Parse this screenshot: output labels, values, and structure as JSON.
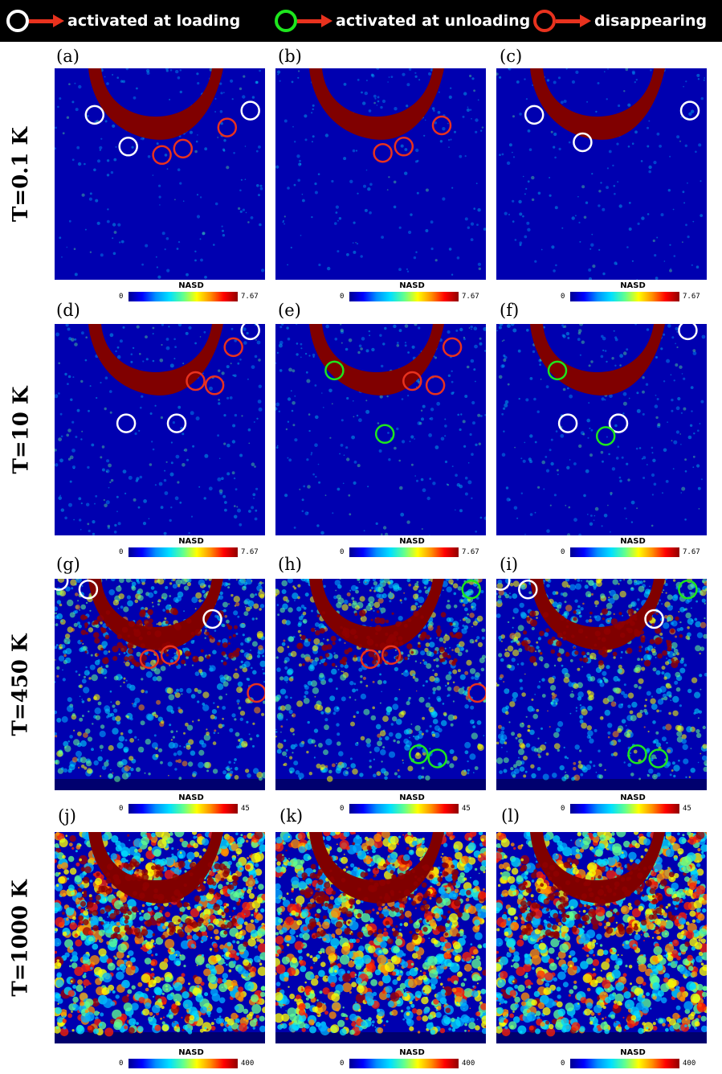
{
  "legend": [
    {
      "text": "activated at loading",
      "color": "#ffffff"
    },
    {
      "text": "activated at unloading",
      "color": "#1ee61e"
    },
    {
      "text": "disappearing",
      "color": "#e8321e"
    }
  ],
  "rows": [
    {
      "label": "T=0.1 K",
      "colorbar": {
        "title": "NASD",
        "min": "0",
        "max": "7.67"
      },
      "intensity": 0.05
    },
    {
      "label": "T=10 K",
      "colorbar": {
        "title": "NASD",
        "min": "0",
        "max": "7.67"
      },
      "intensity": 0.1
    },
    {
      "label": "T=450 K",
      "colorbar": {
        "title": "NASD",
        "min": "0",
        "max": "45"
      },
      "intensity": 0.45
    },
    {
      "label": "T=1000 K",
      "colorbar": {
        "title": "NASD",
        "min": "0",
        "max": "400"
      },
      "intensity": 0.85
    }
  ],
  "panels": [
    {
      "id": "(a)",
      "row": 0,
      "markers": [
        {
          "x": 0.19,
          "y": 0.22,
          "c": "white"
        },
        {
          "x": 0.35,
          "y": 0.37,
          "c": "white"
        },
        {
          "x": 0.93,
          "y": 0.2,
          "c": "white"
        },
        {
          "x": 0.82,
          "y": 0.28,
          "c": "red"
        },
        {
          "x": 0.51,
          "y": 0.41,
          "c": "red"
        },
        {
          "x": 0.61,
          "y": 0.38,
          "c": "red"
        }
      ]
    },
    {
      "id": "(b)",
      "row": 0,
      "markers": [
        {
          "x": 0.79,
          "y": 0.27,
          "c": "red"
        },
        {
          "x": 0.51,
          "y": 0.4,
          "c": "red"
        },
        {
          "x": 0.61,
          "y": 0.37,
          "c": "red"
        }
      ]
    },
    {
      "id": "(c)",
      "row": 0,
      "markers": [
        {
          "x": 0.18,
          "y": 0.22,
          "c": "white"
        },
        {
          "x": 0.41,
          "y": 0.35,
          "c": "white"
        },
        {
          "x": 0.92,
          "y": 0.2,
          "c": "white"
        }
      ]
    },
    {
      "id": "(d)",
      "row": 1,
      "markers": [
        {
          "x": 0.93,
          "y": 0.03,
          "c": "white"
        },
        {
          "x": 0.85,
          "y": 0.11,
          "c": "red"
        },
        {
          "x": 0.67,
          "y": 0.27,
          "c": "red"
        },
        {
          "x": 0.76,
          "y": 0.29,
          "c": "red"
        },
        {
          "x": 0.34,
          "y": 0.47,
          "c": "white"
        },
        {
          "x": 0.58,
          "y": 0.47,
          "c": "white"
        }
      ]
    },
    {
      "id": "(e)",
      "row": 1,
      "markers": [
        {
          "x": 0.84,
          "y": 0.11,
          "c": "red"
        },
        {
          "x": 0.65,
          "y": 0.27,
          "c": "red"
        },
        {
          "x": 0.76,
          "y": 0.29,
          "c": "red"
        },
        {
          "x": 0.28,
          "y": 0.22,
          "c": "green"
        },
        {
          "x": 0.52,
          "y": 0.52,
          "c": "green"
        }
      ]
    },
    {
      "id": "(f)",
      "row": 1,
      "markers": [
        {
          "x": 0.91,
          "y": 0.03,
          "c": "white"
        },
        {
          "x": 0.29,
          "y": 0.22,
          "c": "green"
        },
        {
          "x": 0.34,
          "y": 0.47,
          "c": "white"
        },
        {
          "x": 0.58,
          "y": 0.47,
          "c": "white"
        },
        {
          "x": 0.52,
          "y": 0.53,
          "c": "green"
        }
      ]
    },
    {
      "id": "(g)",
      "row": 2,
      "markers": [
        {
          "x": 0.02,
          "y": 0.01,
          "c": "white"
        },
        {
          "x": 0.16,
          "y": 0.05,
          "c": "white"
        },
        {
          "x": 0.75,
          "y": 0.19,
          "c": "white"
        },
        {
          "x": 0.45,
          "y": 0.38,
          "c": "red"
        },
        {
          "x": 0.55,
          "y": 0.36,
          "c": "red"
        },
        {
          "x": 0.96,
          "y": 0.54,
          "c": "red"
        }
      ]
    },
    {
      "id": "(h)",
      "row": 2,
      "markers": [
        {
          "x": 0.93,
          "y": 0.05,
          "c": "green"
        },
        {
          "x": 0.45,
          "y": 0.38,
          "c": "red"
        },
        {
          "x": 0.55,
          "y": 0.36,
          "c": "red"
        },
        {
          "x": 0.96,
          "y": 0.54,
          "c": "red"
        },
        {
          "x": 0.68,
          "y": 0.83,
          "c": "green"
        },
        {
          "x": 0.77,
          "y": 0.85,
          "c": "green"
        }
      ]
    },
    {
      "id": "(i)",
      "row": 2,
      "markers": [
        {
          "x": 0.02,
          "y": 0.01,
          "c": "white"
        },
        {
          "x": 0.15,
          "y": 0.05,
          "c": "white"
        },
        {
          "x": 0.91,
          "y": 0.05,
          "c": "green"
        },
        {
          "x": 0.75,
          "y": 0.19,
          "c": "white"
        },
        {
          "x": 0.67,
          "y": 0.83,
          "c": "green"
        },
        {
          "x": 0.77,
          "y": 0.85,
          "c": "green"
        }
      ]
    },
    {
      "id": "(j)",
      "row": 3,
      "markers": []
    },
    {
      "id": "(k)",
      "row": 3,
      "markers": []
    },
    {
      "id": "(l)",
      "row": 3,
      "markers": []
    }
  ],
  "colors": {
    "background": "#0000b0",
    "indent": "#800000",
    "bottom": "#00006e",
    "marker_white": "#ffffff",
    "marker_green": "#1ee61e",
    "marker_red": "#e8321e"
  }
}
